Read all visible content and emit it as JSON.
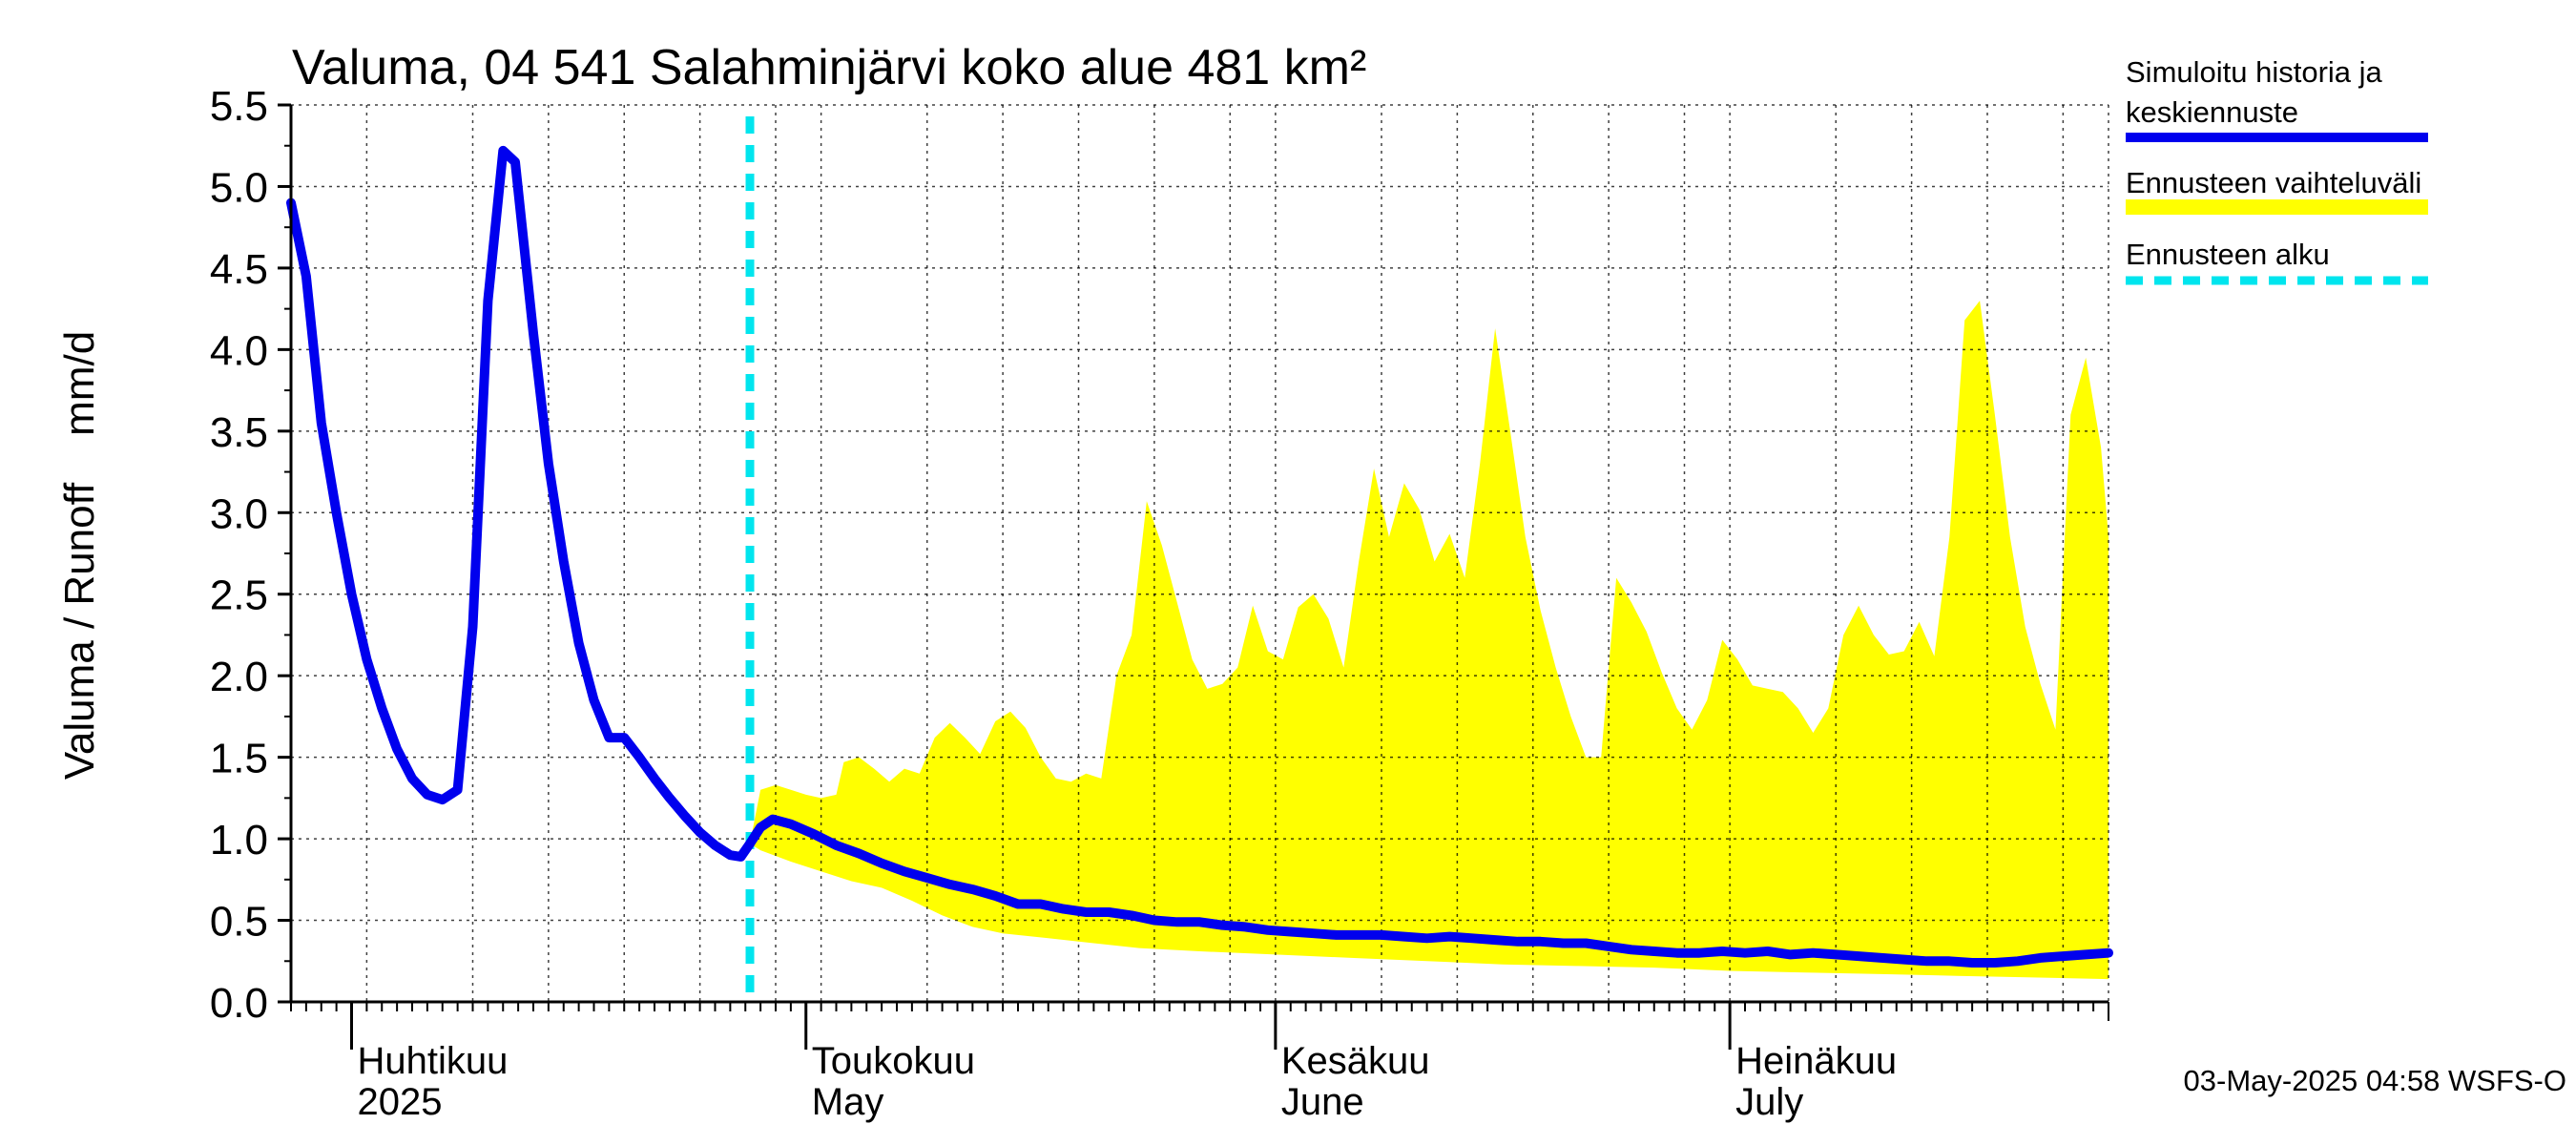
{
  "chart_data": {
    "type": "area",
    "title": "Valuma, 04 541 Salahminjärvi koko alue 481 km²",
    "ylabel": "Valuma / Runoff    mm/d",
    "xlabel": "",
    "ylim": [
      0,
      5.5
    ],
    "yticks": [
      0.0,
      0.5,
      1.0,
      1.5,
      2.0,
      2.5,
      3.0,
      3.5,
      4.0,
      4.5,
      5.0,
      5.5
    ],
    "ytick_labels": [
      "0.0",
      "0.5",
      "1.0",
      "1.5",
      "2.0",
      "2.5",
      "3.0",
      "3.5",
      "4.0",
      "4.5",
      "5.0",
      "5.5"
    ],
    "x_start_day": 0,
    "x_end_day": 120,
    "x_axis_note": "day 0 = 28-Mar-2025, day 120 = 26-Jul-2025",
    "minor_tick_interval_days": 1,
    "gridline_days": [
      0,
      5,
      12,
      17,
      22,
      27,
      32,
      35,
      42,
      47,
      52,
      57,
      62,
      65,
      72,
      77,
      82,
      87,
      92,
      95,
      102,
      107,
      112,
      117,
      120
    ],
    "month_ticks": [
      {
        "day": 4,
        "fi": "Huhtikuu",
        "en": "2025"
      },
      {
        "day": 34,
        "fi": "Toukokuu",
        "en": "May"
      },
      {
        "day": 65,
        "fi": "Kesäkuu",
        "en": "June"
      },
      {
        "day": 95,
        "fi": "Heinäkuu",
        "en": "July"
      }
    ],
    "forecast_start_day": 30.3,
    "legend": [
      {
        "label_line1": "Simuloitu historia ja",
        "label_line2": "keskiennuste",
        "color": "#0000ee",
        "style": "solid"
      },
      {
        "label_line1": "Ennusteen vaihteluväli",
        "label_line2": "",
        "color": "#ffff00",
        "style": "band"
      },
      {
        "label_line1": "Ennusteen alku",
        "label_line2": "",
        "color": "#00e5ee",
        "style": "dashed"
      }
    ],
    "timestamp": "03-May-2025 04:58 WSFS-O",
    "series": [
      {
        "name": "Simuloitu historia ja keskiennuste",
        "color": "#0000ee",
        "points": [
          [
            0,
            4.9
          ],
          [
            1,
            4.45
          ],
          [
            2,
            3.55
          ],
          [
            3,
            3.0
          ],
          [
            4,
            2.5
          ],
          [
            5,
            2.1
          ],
          [
            6,
            1.8
          ],
          [
            7,
            1.55
          ],
          [
            8,
            1.37
          ],
          [
            9,
            1.27
          ],
          [
            10,
            1.24
          ],
          [
            11,
            1.3
          ],
          [
            12,
            2.3
          ],
          [
            13,
            4.3
          ],
          [
            14,
            5.22
          ],
          [
            14.8,
            5.15
          ],
          [
            16,
            4.1
          ],
          [
            17,
            3.3
          ],
          [
            18,
            2.7
          ],
          [
            19,
            2.2
          ],
          [
            20,
            1.85
          ],
          [
            21,
            1.62
          ],
          [
            22,
            1.62
          ],
          [
            23,
            1.5
          ],
          [
            24,
            1.37
          ],
          [
            25,
            1.25
          ],
          [
            26,
            1.14
          ],
          [
            27,
            1.04
          ],
          [
            28,
            0.96
          ],
          [
            29,
            0.9
          ],
          [
            29.7,
            0.89
          ],
          [
            30.3,
            0.97
          ],
          [
            31,
            1.07
          ],
          [
            31.8,
            1.12
          ],
          [
            33,
            1.09
          ],
          [
            34.5,
            1.03
          ],
          [
            36,
            0.96
          ],
          [
            37.5,
            0.91
          ],
          [
            39,
            0.85
          ],
          [
            40.5,
            0.8
          ],
          [
            42,
            0.76
          ],
          [
            43.5,
            0.72
          ],
          [
            45,
            0.69
          ],
          [
            46.5,
            0.65
          ],
          [
            48,
            0.6
          ],
          [
            49.5,
            0.6
          ],
          [
            51,
            0.57
          ],
          [
            52.5,
            0.55
          ],
          [
            54,
            0.55
          ],
          [
            55.5,
            0.53
          ],
          [
            57,
            0.5
          ],
          [
            58.5,
            0.49
          ],
          [
            60,
            0.49
          ],
          [
            61.5,
            0.47
          ],
          [
            63,
            0.46
          ],
          [
            64.5,
            0.44
          ],
          [
            66,
            0.43
          ],
          [
            67.5,
            0.42
          ],
          [
            69,
            0.41
          ],
          [
            70.5,
            0.41
          ],
          [
            72,
            0.41
          ],
          [
            73.5,
            0.4
          ],
          [
            75,
            0.39
          ],
          [
            76.5,
            0.4
          ],
          [
            78,
            0.39
          ],
          [
            79.5,
            0.38
          ],
          [
            81,
            0.37
          ],
          [
            82.5,
            0.37
          ],
          [
            84,
            0.36
          ],
          [
            85.5,
            0.36
          ],
          [
            87,
            0.34
          ],
          [
            88.5,
            0.32
          ],
          [
            90,
            0.31
          ],
          [
            91.5,
            0.3
          ],
          [
            93,
            0.3
          ],
          [
            94.5,
            0.31
          ],
          [
            96,
            0.3
          ],
          [
            97.5,
            0.31
          ],
          [
            99,
            0.29
          ],
          [
            100.5,
            0.3
          ],
          [
            102,
            0.29
          ],
          [
            103.5,
            0.28
          ],
          [
            105,
            0.27
          ],
          [
            106.5,
            0.26
          ],
          [
            108,
            0.25
          ],
          [
            109.5,
            0.25
          ],
          [
            111,
            0.24
          ],
          [
            112.5,
            0.24
          ],
          [
            114,
            0.25
          ],
          [
            115.5,
            0.27
          ],
          [
            117,
            0.28
          ],
          [
            118.5,
            0.29
          ],
          [
            120,
            0.3
          ]
        ]
      },
      {
        "name": "Ennusteen vaihteluväli",
        "color": "#ffff00",
        "upper": [
          [
            30.3,
            0.97
          ],
          [
            31,
            1.3
          ],
          [
            32,
            1.33
          ],
          [
            33,
            1.3
          ],
          [
            34,
            1.27
          ],
          [
            35,
            1.25
          ],
          [
            36,
            1.27
          ],
          [
            36.5,
            1.47
          ],
          [
            37.5,
            1.5
          ],
          [
            38.5,
            1.43
          ],
          [
            39.5,
            1.35
          ],
          [
            40.5,
            1.43
          ],
          [
            41.5,
            1.4
          ],
          [
            42.5,
            1.62
          ],
          [
            43.5,
            1.71
          ],
          [
            44.5,
            1.62
          ],
          [
            45.5,
            1.52
          ],
          [
            46.5,
            1.72
          ],
          [
            47.5,
            1.78
          ],
          [
            48.5,
            1.68
          ],
          [
            49.5,
            1.5
          ],
          [
            50.5,
            1.37
          ],
          [
            51.5,
            1.35
          ],
          [
            52.5,
            1.4
          ],
          [
            53.5,
            1.37
          ],
          [
            54.5,
            2.0
          ],
          [
            55.5,
            2.25
          ],
          [
            56.5,
            3.07
          ],
          [
            57.5,
            2.8
          ],
          [
            58.5,
            2.45
          ],
          [
            59.5,
            2.1
          ],
          [
            60.5,
            1.92
          ],
          [
            61.5,
            1.95
          ],
          [
            62.5,
            2.05
          ],
          [
            63.5,
            2.43
          ],
          [
            64.5,
            2.15
          ],
          [
            65.5,
            2.1
          ],
          [
            66.5,
            2.42
          ],
          [
            67.5,
            2.5
          ],
          [
            68.5,
            2.35
          ],
          [
            69.5,
            2.05
          ],
          [
            70.5,
            2.7
          ],
          [
            71.5,
            3.27
          ],
          [
            72.5,
            2.85
          ],
          [
            73.5,
            3.18
          ],
          [
            74.5,
            3.02
          ],
          [
            75.5,
            2.7
          ],
          [
            76.5,
            2.87
          ],
          [
            77.5,
            2.6
          ],
          [
            78.5,
            3.3
          ],
          [
            79.5,
            4.13
          ],
          [
            80.5,
            3.5
          ],
          [
            81.5,
            2.85
          ],
          [
            82.5,
            2.4
          ],
          [
            83.5,
            2.05
          ],
          [
            84.5,
            1.75
          ],
          [
            85.5,
            1.5
          ],
          [
            86.5,
            1.5
          ],
          [
            87.5,
            2.6
          ],
          [
            88.5,
            2.45
          ],
          [
            89.5,
            2.27
          ],
          [
            90.5,
            2.02
          ],
          [
            91.5,
            1.8
          ],
          [
            92.5,
            1.67
          ],
          [
            93.5,
            1.85
          ],
          [
            94.5,
            2.22
          ],
          [
            95.5,
            2.1
          ],
          [
            96.5,
            1.94
          ],
          [
            97.5,
            1.92
          ],
          [
            98.5,
            1.9
          ],
          [
            99.5,
            1.8
          ],
          [
            100.5,
            1.65
          ],
          [
            101.5,
            1.8
          ],
          [
            102.5,
            2.25
          ],
          [
            103.5,
            2.43
          ],
          [
            104.5,
            2.25
          ],
          [
            105.5,
            2.13
          ],
          [
            106.5,
            2.15
          ],
          [
            107.5,
            2.33
          ],
          [
            108.5,
            2.12
          ],
          [
            109.5,
            2.85
          ],
          [
            110.5,
            4.18
          ],
          [
            111.5,
            4.3
          ],
          [
            112.5,
            3.6
          ],
          [
            113.5,
            2.85
          ],
          [
            114.5,
            2.3
          ],
          [
            115.5,
            1.95
          ],
          [
            116.5,
            1.67
          ],
          [
            117.5,
            3.6
          ],
          [
            118.5,
            3.95
          ],
          [
            119.5,
            3.4
          ],
          [
            120,
            2.85
          ]
        ],
        "lower": [
          [
            30.3,
            0.97
          ],
          [
            31,
            0.93
          ],
          [
            33,
            0.86
          ],
          [
            35,
            0.8
          ],
          [
            37,
            0.74
          ],
          [
            39,
            0.7
          ],
          [
            41,
            0.62
          ],
          [
            43,
            0.53
          ],
          [
            45,
            0.46
          ],
          [
            47,
            0.42
          ],
          [
            50,
            0.39
          ],
          [
            53,
            0.36
          ],
          [
            56,
            0.33
          ],
          [
            60,
            0.31
          ],
          [
            65,
            0.29
          ],
          [
            70,
            0.27
          ],
          [
            75,
            0.25
          ],
          [
            80,
            0.23
          ],
          [
            85,
            0.22
          ],
          [
            90,
            0.21
          ],
          [
            95,
            0.19
          ],
          [
            100,
            0.18
          ],
          [
            105,
            0.17
          ],
          [
            110,
            0.16
          ],
          [
            115,
            0.15
          ],
          [
            120,
            0.14
          ]
        ]
      }
    ]
  }
}
